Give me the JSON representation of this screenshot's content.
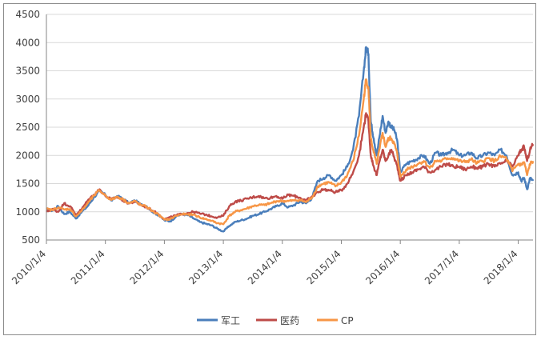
{
  "chart_data": {
    "type": "line",
    "title": "",
    "xlabel": "",
    "ylabel": "",
    "ylim": [
      500,
      4500
    ],
    "yticks": [
      500,
      1000,
      1500,
      2000,
      2500,
      3000,
      3500,
      4000,
      4500
    ],
    "ytick_labels": [
      "500",
      "1000",
      "1500",
      "2000",
      "2500",
      "3000",
      "3500",
      "4000",
      "4500"
    ],
    "xlim": [
      2010.0,
      2018.25
    ],
    "xticks": [
      2010.0,
      2011.0,
      2012.0,
      2013.0,
      2014.0,
      2015.0,
      2016.0,
      2017.0,
      2018.0
    ],
    "xtick_labels": [
      "2010/1/4",
      "2011/1/4",
      "2012/1/4",
      "2013/1/4",
      "2014/1/4",
      "2015/1/4",
      "2016/1/4",
      "2017/1/4",
      "2018/1/4"
    ],
    "grid": "horizontal",
    "legend_position": "bottom",
    "series": [
      {
        "name": "军工",
        "color": "#4a7ebb",
        "points": [
          [
            2010.0,
            1050
          ],
          [
            2010.1,
            1020
          ],
          [
            2010.2,
            1100
          ],
          [
            2010.3,
            960
          ],
          [
            2010.4,
            1000
          ],
          [
            2010.5,
            880
          ],
          [
            2010.6,
            1000
          ],
          [
            2010.7,
            1100
          ],
          [
            2010.8,
            1250
          ],
          [
            2010.9,
            1370
          ],
          [
            2011.0,
            1300
          ],
          [
            2011.1,
            1200
          ],
          [
            2011.2,
            1280
          ],
          [
            2011.3,
            1230
          ],
          [
            2011.4,
            1150
          ],
          [
            2011.5,
            1200
          ],
          [
            2011.6,
            1130
          ],
          [
            2011.7,
            1100
          ],
          [
            2011.8,
            1000
          ],
          [
            2011.9,
            940
          ],
          [
            2012.0,
            850
          ],
          [
            2012.1,
            830
          ],
          [
            2012.2,
            920
          ],
          [
            2012.3,
            960
          ],
          [
            2012.4,
            940
          ],
          [
            2012.5,
            880
          ],
          [
            2012.6,
            820
          ],
          [
            2012.7,
            790
          ],
          [
            2012.8,
            760
          ],
          [
            2012.9,
            700
          ],
          [
            2013.0,
            650
          ],
          [
            2013.1,
            750
          ],
          [
            2013.2,
            820
          ],
          [
            2013.3,
            850
          ],
          [
            2013.4,
            880
          ],
          [
            2013.5,
            930
          ],
          [
            2013.6,
            960
          ],
          [
            2013.7,
            1000
          ],
          [
            2013.8,
            1050
          ],
          [
            2013.9,
            1100
          ],
          [
            2014.0,
            1150
          ],
          [
            2014.1,
            1080
          ],
          [
            2014.2,
            1120
          ],
          [
            2014.3,
            1180
          ],
          [
            2014.4,
            1150
          ],
          [
            2014.5,
            1240
          ],
          [
            2014.6,
            1550
          ],
          [
            2014.7,
            1600
          ],
          [
            2014.8,
            1650
          ],
          [
            2014.9,
            1550
          ],
          [
            2015.0,
            1650
          ],
          [
            2015.1,
            1800
          ],
          [
            2015.2,
            2100
          ],
          [
            2015.3,
            2700
          ],
          [
            2015.38,
            3500
          ],
          [
            2015.42,
            3920
          ],
          [
            2015.46,
            3800
          ],
          [
            2015.5,
            2600
          ],
          [
            2015.55,
            2300
          ],
          [
            2015.6,
            2000
          ],
          [
            2015.65,
            2350
          ],
          [
            2015.7,
            2700
          ],
          [
            2015.75,
            2400
          ],
          [
            2015.8,
            2600
          ],
          [
            2015.85,
            2500
          ],
          [
            2015.9,
            2450
          ],
          [
            2015.95,
            2250
          ],
          [
            2016.0,
            1700
          ],
          [
            2016.1,
            1850
          ],
          [
            2016.2,
            1900
          ],
          [
            2016.3,
            1950
          ],
          [
            2016.4,
            2000
          ],
          [
            2016.5,
            1850
          ],
          [
            2016.6,
            2050
          ],
          [
            2016.7,
            2000
          ],
          [
            2016.8,
            2050
          ],
          [
            2016.9,
            2100
          ],
          [
            2017.0,
            2000
          ],
          [
            2017.1,
            2000
          ],
          [
            2017.2,
            2050
          ],
          [
            2017.3,
            1950
          ],
          [
            2017.4,
            2000
          ],
          [
            2017.5,
            2050
          ],
          [
            2017.6,
            2000
          ],
          [
            2017.7,
            2100
          ],
          [
            2017.8,
            2000
          ],
          [
            2017.9,
            1650
          ],
          [
            2018.0,
            1700
          ],
          [
            2018.05,
            1550
          ],
          [
            2018.1,
            1600
          ],
          [
            2018.15,
            1400
          ],
          [
            2018.2,
            1600
          ],
          [
            2018.25,
            1550
          ]
        ]
      },
      {
        "name": "医药",
        "color": "#be4b48",
        "points": [
          [
            2010.0,
            1000
          ],
          [
            2010.1,
            1050
          ],
          [
            2010.2,
            1000
          ],
          [
            2010.3,
            1150
          ],
          [
            2010.4,
            1100
          ],
          [
            2010.5,
            950
          ],
          [
            2010.6,
            1050
          ],
          [
            2010.7,
            1200
          ],
          [
            2010.8,
            1300
          ],
          [
            2010.9,
            1400
          ],
          [
            2011.0,
            1280
          ],
          [
            2011.1,
            1220
          ],
          [
            2011.2,
            1260
          ],
          [
            2011.3,
            1200
          ],
          [
            2011.4,
            1150
          ],
          [
            2011.5,
            1180
          ],
          [
            2011.6,
            1120
          ],
          [
            2011.7,
            1080
          ],
          [
            2011.8,
            1020
          ],
          [
            2011.9,
            960
          ],
          [
            2012.0,
            870
          ],
          [
            2012.1,
            900
          ],
          [
            2012.2,
            940
          ],
          [
            2012.3,
            960
          ],
          [
            2012.4,
            980
          ],
          [
            2012.5,
            1000
          ],
          [
            2012.6,
            970
          ],
          [
            2012.7,
            950
          ],
          [
            2012.8,
            920
          ],
          [
            2012.9,
            900
          ],
          [
            2013.0,
            930
          ],
          [
            2013.1,
            1100
          ],
          [
            2013.2,
            1180
          ],
          [
            2013.3,
            1200
          ],
          [
            2013.4,
            1230
          ],
          [
            2013.5,
            1260
          ],
          [
            2013.6,
            1280
          ],
          [
            2013.7,
            1240
          ],
          [
            2013.8,
            1250
          ],
          [
            2013.9,
            1280
          ],
          [
            2014.0,
            1230
          ],
          [
            2014.1,
            1300
          ],
          [
            2014.2,
            1280
          ],
          [
            2014.3,
            1250
          ],
          [
            2014.4,
            1200
          ],
          [
            2014.5,
            1260
          ],
          [
            2014.6,
            1350
          ],
          [
            2014.7,
            1400
          ],
          [
            2014.8,
            1380
          ],
          [
            2014.9,
            1350
          ],
          [
            2015.0,
            1380
          ],
          [
            2015.1,
            1500
          ],
          [
            2015.2,
            1700
          ],
          [
            2015.3,
            2000
          ],
          [
            2015.38,
            2500
          ],
          [
            2015.42,
            2750
          ],
          [
            2015.46,
            2600
          ],
          [
            2015.5,
            2000
          ],
          [
            2015.55,
            1800
          ],
          [
            2015.6,
            1650
          ],
          [
            2015.65,
            1900
          ],
          [
            2015.7,
            2100
          ],
          [
            2015.75,
            1900
          ],
          [
            2015.8,
            2000
          ],
          [
            2015.85,
            2100
          ],
          [
            2015.9,
            1950
          ],
          [
            2015.95,
            1800
          ],
          [
            2016.0,
            1550
          ],
          [
            2016.1,
            1650
          ],
          [
            2016.2,
            1700
          ],
          [
            2016.3,
            1750
          ],
          [
            2016.4,
            1800
          ],
          [
            2016.5,
            1700
          ],
          [
            2016.6,
            1750
          ],
          [
            2016.7,
            1800
          ],
          [
            2016.8,
            1850
          ],
          [
            2016.9,
            1800
          ],
          [
            2017.0,
            1800
          ],
          [
            2017.1,
            1750
          ],
          [
            2017.2,
            1800
          ],
          [
            2017.3,
            1780
          ],
          [
            2017.4,
            1800
          ],
          [
            2017.5,
            1850
          ],
          [
            2017.6,
            1800
          ],
          [
            2017.7,
            1850
          ],
          [
            2017.8,
            1900
          ],
          [
            2017.9,
            1800
          ],
          [
            2018.0,
            2000
          ],
          [
            2018.05,
            2100
          ],
          [
            2018.1,
            2150
          ],
          [
            2018.15,
            1900
          ],
          [
            2018.2,
            2100
          ],
          [
            2018.25,
            2200
          ]
        ]
      },
      {
        "name": "CP",
        "color": "#f79646",
        "points": [
          [
            2010.0,
            1050
          ],
          [
            2010.1,
            1030
          ],
          [
            2010.2,
            1080
          ],
          [
            2010.3,
            1040
          ],
          [
            2010.4,
            1050
          ],
          [
            2010.5,
            920
          ],
          [
            2010.6,
            1020
          ],
          [
            2010.7,
            1150
          ],
          [
            2010.8,
            1280
          ],
          [
            2010.9,
            1380
          ],
          [
            2011.0,
            1290
          ],
          [
            2011.1,
            1210
          ],
          [
            2011.2,
            1270
          ],
          [
            2011.3,
            1220
          ],
          [
            2011.4,
            1150
          ],
          [
            2011.5,
            1190
          ],
          [
            2011.6,
            1120
          ],
          [
            2011.7,
            1090
          ],
          [
            2011.8,
            1010
          ],
          [
            2011.9,
            950
          ],
          [
            2012.0,
            860
          ],
          [
            2012.1,
            870
          ],
          [
            2012.2,
            930
          ],
          [
            2012.3,
            960
          ],
          [
            2012.4,
            950
          ],
          [
            2012.5,
            950
          ],
          [
            2012.6,
            900
          ],
          [
            2012.7,
            870
          ],
          [
            2012.8,
            840
          ],
          [
            2012.9,
            800
          ],
          [
            2013.0,
            780
          ],
          [
            2013.1,
            930
          ],
          [
            2013.2,
            1000
          ],
          [
            2013.3,
            1030
          ],
          [
            2013.4,
            1060
          ],
          [
            2013.5,
            1100
          ],
          [
            2013.6,
            1120
          ],
          [
            2013.7,
            1120
          ],
          [
            2013.8,
            1150
          ],
          [
            2013.9,
            1190
          ],
          [
            2014.0,
            1190
          ],
          [
            2014.1,
            1190
          ],
          [
            2014.2,
            1200
          ],
          [
            2014.3,
            1210
          ],
          [
            2014.4,
            1170
          ],
          [
            2014.5,
            1250
          ],
          [
            2014.6,
            1450
          ],
          [
            2014.7,
            1500
          ],
          [
            2014.8,
            1520
          ],
          [
            2014.9,
            1450
          ],
          [
            2015.0,
            1520
          ],
          [
            2015.1,
            1650
          ],
          [
            2015.2,
            1900
          ],
          [
            2015.3,
            2350
          ],
          [
            2015.38,
            3000
          ],
          [
            2015.42,
            3350
          ],
          [
            2015.46,
            3200
          ],
          [
            2015.5,
            2300
          ],
          [
            2015.55,
            2050
          ],
          [
            2015.6,
            1850
          ],
          [
            2015.65,
            2120
          ],
          [
            2015.7,
            2400
          ],
          [
            2015.75,
            2150
          ],
          [
            2015.8,
            2300
          ],
          [
            2015.85,
            2300
          ],
          [
            2015.9,
            2200
          ],
          [
            2015.95,
            2020
          ],
          [
            2016.0,
            1620
          ],
          [
            2016.1,
            1750
          ],
          [
            2016.2,
            1800
          ],
          [
            2016.3,
            1850
          ],
          [
            2016.4,
            1900
          ],
          [
            2016.5,
            1780
          ],
          [
            2016.6,
            1900
          ],
          [
            2016.7,
            1900
          ],
          [
            2016.8,
            1950
          ],
          [
            2016.9,
            1950
          ],
          [
            2017.0,
            1900
          ],
          [
            2017.1,
            1880
          ],
          [
            2017.2,
            1930
          ],
          [
            2017.3,
            1860
          ],
          [
            2017.4,
            1900
          ],
          [
            2017.5,
            1950
          ],
          [
            2017.6,
            1900
          ],
          [
            2017.7,
            1980
          ],
          [
            2017.8,
            1950
          ],
          [
            2017.9,
            1720
          ],
          [
            2018.0,
            1850
          ],
          [
            2018.05,
            1830
          ],
          [
            2018.1,
            1880
          ],
          [
            2018.15,
            1650
          ],
          [
            2018.2,
            1850
          ],
          [
            2018.25,
            1900
          ]
        ]
      }
    ]
  }
}
